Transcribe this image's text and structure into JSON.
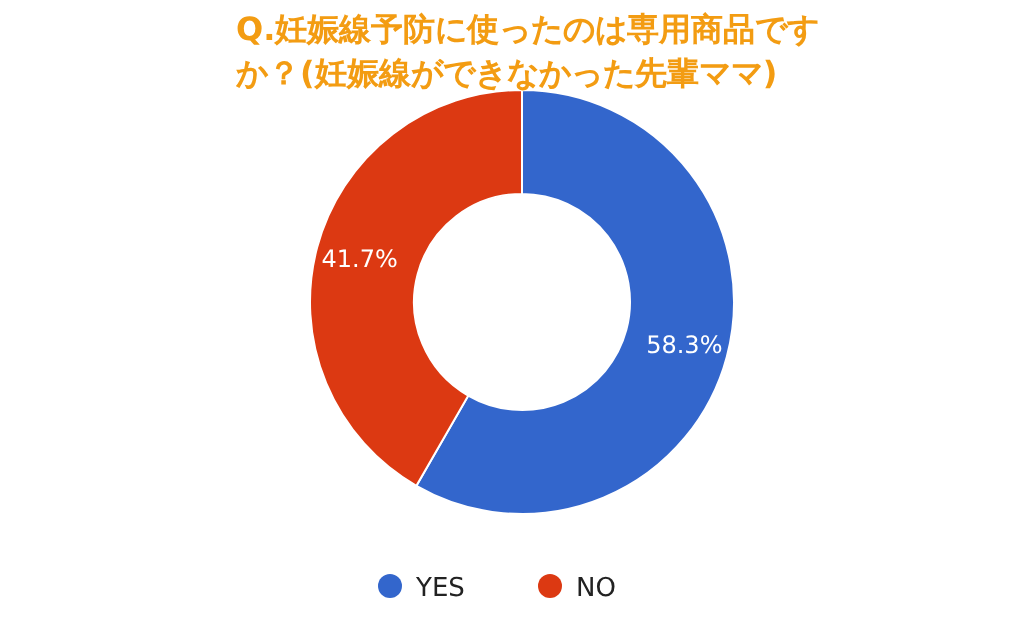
{
  "chart_data": {
    "type": "donut",
    "title": "Q.妊娠線予防に使ったのは専用商品ですか？(妊娠線ができなかった先輩ママ)",
    "categories": [
      "YES",
      "NO"
    ],
    "values": [
      58.3,
      41.7
    ],
    "colors": [
      "#3366cc",
      "#dc3912"
    ],
    "value_labels": [
      "58.3%",
      "41.7%"
    ],
    "legend": "bottom"
  }
}
